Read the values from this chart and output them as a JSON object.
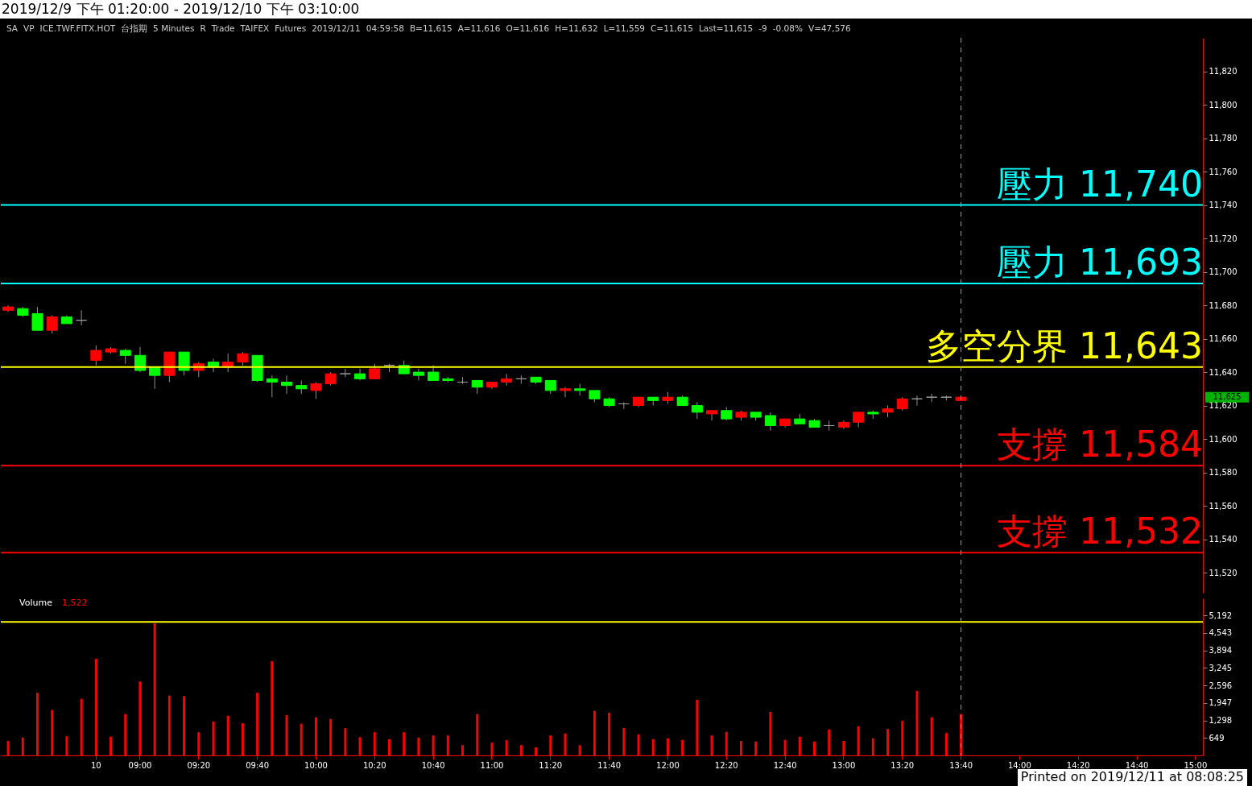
{
  "chart_data": [
    {
      "type": "candlestick",
      "title": "2019/12/9 下午 01:20:00 - 2019/12/10 下午 03:10:00",
      "categories": [
        null,
        null,
        null,
        null,
        null,
        null,
        "10",
        null,
        null,
        "09:00",
        null,
        null,
        null,
        "09:20",
        null,
        null,
        null,
        "09:40",
        null,
        null,
        null,
        "10:00",
        null,
        null,
        null,
        "10:20",
        null,
        null,
        null,
        "10:40",
        null,
        null,
        null,
        "11:00",
        null,
        null,
        null,
        "11:20",
        null,
        null,
        null,
        "11:40",
        null,
        null,
        null,
        "12:00",
        null,
        null,
        null,
        "12:20",
        null,
        null,
        null,
        "12:40",
        null,
        null,
        null,
        "13:00",
        null,
        null,
        null,
        "13:20",
        null,
        null,
        null,
        "13:40",
        null,
        null,
        null,
        "14:00",
        null,
        null,
        null,
        "14:20",
        null,
        null,
        null,
        "14:40",
        null,
        null,
        null,
        "15:00"
      ],
      "ohlc": [
        [
          11677,
          11680,
          11676,
          11679
        ],
        [
          11678,
          11679,
          11673,
          11674
        ],
        [
          11675,
          11679,
          11665,
          11665
        ],
        [
          11665,
          11674,
          11663,
          11673
        ],
        [
          11673,
          11674,
          11669,
          11669
        ],
        [
          11671,
          11677,
          11668,
          11671
        ],
        [
          11647,
          11656,
          11644,
          11653
        ],
        [
          11652,
          11655,
          11651,
          11654
        ],
        [
          11653,
          11654,
          11645,
          11650
        ],
        [
          11650,
          11655,
          11640,
          11641
        ],
        [
          11643,
          11643,
          11630,
          11638
        ],
        [
          11638,
          11652,
          11634,
          11652
        ],
        [
          11652,
          11652,
          11638,
          11641
        ],
        [
          11641,
          11646,
          11637,
          11645
        ],
        [
          11646,
          11648,
          11640,
          11643
        ],
        [
          11643,
          11651,
          11640,
          11646
        ],
        [
          11646,
          11652,
          11644,
          11651
        ],
        [
          11650,
          11650,
          11634,
          11635
        ],
        [
          11636,
          11638,
          11625,
          11634
        ],
        [
          11634,
          11638,
          11627,
          11632
        ],
        [
          11632,
          11635,
          11627,
          11630
        ],
        [
          11629,
          11634,
          11624,
          11633
        ],
        [
          11633,
          11640,
          11632,
          11639
        ],
        [
          11639,
          11642,
          11637,
          11639
        ],
        [
          11639,
          11642,
          11635,
          11636
        ],
        [
          11636,
          11645,
          11636,
          11642
        ],
        [
          11644,
          11645,
          11640,
          11644
        ],
        [
          11644,
          11647,
          11639,
          11639
        ],
        [
          11640,
          11642,
          11635,
          11638
        ],
        [
          11640,
          11644,
          11635,
          11635
        ],
        [
          11636,
          11637,
          11634,
          11635
        ],
        [
          11634,
          11637,
          11633,
          11634
        ],
        [
          11635,
          11635,
          11627,
          11631
        ],
        [
          11631,
          11634,
          11630,
          11634
        ],
        [
          11634,
          11639,
          11632,
          11636
        ],
        [
          11636,
          11638,
          11633,
          11636
        ],
        [
          11637,
          11637,
          11633,
          11634
        ],
        [
          11635,
          11635,
          11627,
          11629
        ],
        [
          11629,
          11631,
          11625,
          11630
        ],
        [
          11630,
          11633,
          11626,
          11629
        ],
        [
          11629,
          11629,
          11622,
          11624
        ],
        [
          11624,
          11625,
          11619,
          11620
        ],
        [
          11621,
          11622,
          11618,
          11621
        ],
        [
          11620,
          11625,
          11619,
          11625
        ],
        [
          11625,
          11625,
          11620,
          11623
        ],
        [
          11623,
          11628,
          11621,
          11625
        ],
        [
          11625,
          11626,
          11620,
          11620
        ],
        [
          11620,
          11622,
          11612,
          11616
        ],
        [
          11615,
          11617,
          11611,
          11617
        ],
        [
          11617,
          11619,
          11611,
          11612
        ],
        [
          11613,
          11617,
          11611,
          11616
        ],
        [
          11616,
          11616,
          11611,
          11613
        ],
        [
          11614,
          11616,
          11605,
          11608
        ],
        [
          11608,
          11612,
          11607,
          11612
        ],
        [
          11612,
          11615,
          11609,
          11609
        ],
        [
          11611,
          11612,
          11607,
          11607
        ],
        [
          11608,
          11611,
          11605,
          11608
        ],
        [
          11607,
          11611,
          11606,
          11610
        ],
        [
          11610,
          11616,
          11607,
          11616
        ],
        [
          11616,
          11617,
          11612,
          11615
        ],
        [
          11616,
          11620,
          11613,
          11618
        ],
        [
          11618,
          11625,
          11617,
          11624
        ],
        [
          11624,
          11626,
          11620,
          11624
        ],
        [
          11625,
          11627,
          11622,
          11625
        ],
        [
          11625,
          11626,
          11623,
          11625
        ],
        [
          11623,
          11625,
          11623,
          11625
        ],
        null,
        null,
        null,
        null,
        null,
        null,
        null,
        null,
        null,
        null,
        null,
        null,
        null,
        null,
        null,
        null
      ],
      "colors": [
        "#ff0000",
        "#00ff00",
        "#00ff00",
        "#ff0000",
        "#00ff00",
        "#a0a0a0",
        "#ff0000",
        "#ff0000",
        "#00ff00",
        "#00ff00",
        "#00ff00",
        "#ff0000",
        "#00ff00",
        "#ff0000",
        "#00ff00",
        "#ff0000",
        "#ff0000",
        "#00ff00",
        "#00ff00",
        "#00ff00",
        "#00ff00",
        "#ff0000",
        "#ff0000",
        "#a0a0a0",
        "#00ff00",
        "#ff0000",
        "#a0a0a0",
        "#00ff00",
        "#00ff00",
        "#00ff00",
        "#00ff00",
        "#a0a0a0",
        "#00ff00",
        "#ff0000",
        "#ff0000",
        "#a0a0a0",
        "#00ff00",
        "#00ff00",
        "#ff0000",
        "#00ff00",
        "#00ff00",
        "#00ff00",
        "#a0a0a0",
        "#ff0000",
        "#00ff00",
        "#ff0000",
        "#00ff00",
        "#00ff00",
        "#ff0000",
        "#00ff00",
        "#ff0000",
        "#00ff00",
        "#00ff00",
        "#ff0000",
        "#00ff00",
        "#00ff00",
        "#a0a0a0",
        "#ff0000",
        "#ff0000",
        "#00ff00",
        "#ff0000",
        "#ff0000",
        "#a0a0a0",
        "#a0a0a0",
        "#a0a0a0",
        "#ff0000",
        null,
        null,
        null,
        null,
        null,
        null,
        null,
        null,
        null,
        null,
        null,
        null,
        null,
        null,
        null,
        null
      ],
      "ylim": [
        11508,
        11840
      ],
      "yticks": [
        {
          "value": 11520,
          "label": "11,520"
        },
        {
          "value": 11540,
          "label": "11,540"
        },
        {
          "value": 11560,
          "label": "11,560"
        },
        {
          "value": 11580,
          "label": "11,580"
        },
        {
          "value": 11600,
          "label": "11,600"
        },
        {
          "value": 11620,
          "label": "11,620"
        },
        {
          "value": 11640,
          "label": "11,640"
        },
        {
          "value": 11660,
          "label": "11,660"
        },
        {
          "value": 11680,
          "label": "11,680"
        },
        {
          "value": 11700,
          "label": "11,700"
        },
        {
          "value": 11720,
          "label": "11,720"
        },
        {
          "value": 11740,
          "label": "11,740"
        },
        {
          "value": 11760,
          "label": "11,760"
        },
        {
          "value": 11780,
          "label": "11,780"
        },
        {
          "value": 11800,
          "label": "11,800"
        },
        {
          "value": 11820,
          "label": "11,820"
        }
      ],
      "tick_labels": "y",
      "ref_lines": [
        {
          "axis": "y",
          "value": 11740,
          "label": "壓力 11,740",
          "color": "#00ffff"
        },
        {
          "axis": "y",
          "value": 11693,
          "label": "壓力 11,693",
          "color": "#00ffff"
        },
        {
          "axis": "y",
          "value": 11643,
          "label": "多空分界 11,643",
          "color": "#ffff00"
        },
        {
          "axis": "y",
          "value": 11584,
          "label": "支撐 11,584",
          "color": "#ff0000"
        },
        {
          "axis": "y",
          "value": 11532,
          "label": "支撐 11,532",
          "color": "#ff0000"
        },
        {
          "axis": "x",
          "value": "13:40",
          "color": "#a0a0a0",
          "line_style": "dashed"
        }
      ],
      "annotations": [
        "SA",
        "VP",
        "ICE.TWF.FITX.HOT",
        "台指期",
        "5 Minutes",
        "R",
        "Trade",
        "TAIFEX",
        "Futures",
        "2019/12/11",
        "04:59:58",
        "B=11,615",
        "A=11,616",
        "O=11,616",
        "H=11,632",
        "L=11,559",
        "C=11,615",
        "Last=11,615",
        "-9",
        "-0.08%",
        "V=47,576",
        "11,625"
      ]
    },
    {
      "type": "bar",
      "title": "Volume",
      "categories": [
        null,
        null,
        null,
        null,
        null,
        null,
        "10",
        null,
        null,
        "09:00",
        null,
        null,
        null,
        "09:20",
        null,
        null,
        null,
        "09:40",
        null,
        null,
        null,
        "10:00",
        null,
        null,
        null,
        "10:20",
        null,
        null,
        null,
        "10:40",
        null,
        null,
        null,
        "11:00",
        null,
        null,
        null,
        "11:20",
        null,
        null,
        null,
        "11:40",
        null,
        null,
        null,
        "12:00",
        null,
        null,
        null,
        "12:20",
        null,
        null,
        null,
        "12:40",
        null,
        null,
        null,
        "13:00",
        null,
        null,
        null,
        "13:20",
        null,
        null,
        null,
        "13:40",
        null,
        null,
        null,
        "14:00",
        null,
        null,
        null,
        "14:20",
        null,
        null,
        null,
        "14:40",
        null,
        null,
        null,
        "15:00"
      ],
      "series": [
        {
          "color": "#ff0000",
          "values": [
            540,
            660,
            2320,
            1680,
            710,
            2100,
            3580,
            690,
            1530,
            2740,
            4900,
            2220,
            2200,
            860,
            1260,
            1470,
            1190,
            2320,
            3490,
            1490,
            1170,
            1410,
            1350,
            1010,
            680,
            860,
            600,
            860,
            660,
            740,
            740,
            380,
            1530,
            470,
            560,
            380,
            300,
            740,
            810,
            380,
            1650,
            1580,
            1020,
            780,
            600,
            630,
            570,
            2060,
            740,
            870,
            540,
            510,
            1610,
            570,
            690,
            510,
            960,
            540,
            1080,
            630,
            980,
            1280,
            2390,
            1410,
            830,
            1522,
            null,
            null,
            null,
            null,
            null,
            null,
            null,
            null,
            null,
            null,
            null,
            null,
            null,
            null,
            null,
            null
          ]
        }
      ],
      "ylim": [
        0,
        5820
      ],
      "yticks": [
        649,
        {
          "value": 1298,
          "label": "1,298"
        },
        {
          "value": 1947,
          "label": "1,947"
        },
        {
          "value": 2596,
          "label": "2,596"
        },
        {
          "value": 3245,
          "label": "3,245"
        },
        {
          "value": 3894,
          "label": "3,894"
        },
        {
          "value": 4543,
          "label": "4,543"
        },
        {
          "value": 5192,
          "label": "5,192"
        }
      ],
      "ref_lines": [
        {
          "axis": "y",
          "value": 4950,
          "color": "#ffff00"
        },
        {
          "axis": "x",
          "value": "13:40",
          "color": "#a0a0a0",
          "line_style": "dashed"
        }
      ],
      "annotations": [
        "1,522",
        "Printed on 2019/12/11 at 08:08:25"
      ]
    }
  ]
}
